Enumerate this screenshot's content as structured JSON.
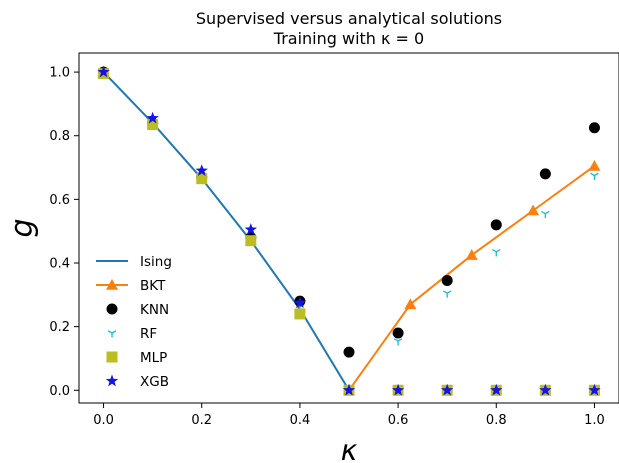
{
  "chart_data": {
    "type": "line",
    "title_line1": "Supervised versus analytical solutions",
    "title_line2": "Training with κ = 0",
    "xlabel": "κ",
    "ylabel": "g",
    "xlim": [
      -0.05,
      1.05
    ],
    "ylim": [
      -0.04,
      1.06
    ],
    "xticks": [
      0.0,
      0.2,
      0.4,
      0.6,
      0.8,
      1.0
    ],
    "xtick_labels": [
      "0.0",
      "0.2",
      "0.4",
      "0.6",
      "0.8",
      "1.0"
    ],
    "yticks": [
      0.0,
      0.2,
      0.4,
      0.6,
      0.8,
      1.0
    ],
    "ytick_labels": [
      "0.0",
      "0.2",
      "0.4",
      "0.6",
      "0.8",
      "1.0"
    ],
    "legend_position": "lower-left",
    "grid": false,
    "series": [
      {
        "name": "Ising",
        "kind": "line",
        "color": "#1f77b4",
        "x": [
          0.0,
          0.1,
          0.2,
          0.3,
          0.4,
          0.5
        ],
        "y": [
          1.0,
          0.84,
          0.665,
          0.47,
          0.255,
          0.0
        ]
      },
      {
        "name": "BKT",
        "kind": "line-triangle",
        "color": "#ff7f0e",
        "x": [
          0.5,
          0.625,
          0.75,
          0.875,
          1.0
        ],
        "y": [
          0.0,
          0.27,
          0.425,
          0.565,
          0.705
        ]
      },
      {
        "name": "KNN",
        "kind": "circle",
        "color": "#000000",
        "x": [
          0.0,
          0.1,
          0.2,
          0.3,
          0.4,
          0.5,
          0.6,
          0.7,
          0.8,
          0.9,
          1.0
        ],
        "y": [
          1.0,
          0.84,
          0.67,
          0.48,
          0.28,
          0.12,
          0.18,
          0.345,
          0.52,
          0.68,
          0.825
        ]
      },
      {
        "name": "RF",
        "kind": "tri-down",
        "color": "#17becf",
        "x": [
          0.0,
          0.1,
          0.2,
          0.3,
          0.4,
          0.5,
          0.6,
          0.7,
          0.8,
          0.9,
          1.0
        ],
        "y": [
          1.0,
          0.84,
          0.67,
          0.48,
          0.27,
          0.0,
          0.155,
          0.305,
          0.435,
          0.555,
          0.675
        ]
      },
      {
        "name": "MLP",
        "kind": "square",
        "color": "#bcbd22",
        "x": [
          0.0,
          0.1,
          0.2,
          0.3,
          0.4,
          0.5,
          0.6,
          0.7,
          0.8,
          0.9,
          1.0
        ],
        "y": [
          0.995,
          0.835,
          0.665,
          0.47,
          0.24,
          0.0,
          0.0,
          0.0,
          0.0,
          0.0,
          0.0
        ]
      },
      {
        "name": "XGB",
        "kind": "star",
        "color": "#1414e6",
        "x": [
          0.0,
          0.1,
          0.2,
          0.3,
          0.4,
          0.5,
          0.6,
          0.7,
          0.8,
          0.9,
          1.0
        ],
        "y": [
          1.0,
          0.855,
          0.69,
          0.505,
          0.275,
          0.0,
          0.0,
          0.0,
          0.0,
          0.0,
          0.0
        ]
      }
    ]
  }
}
